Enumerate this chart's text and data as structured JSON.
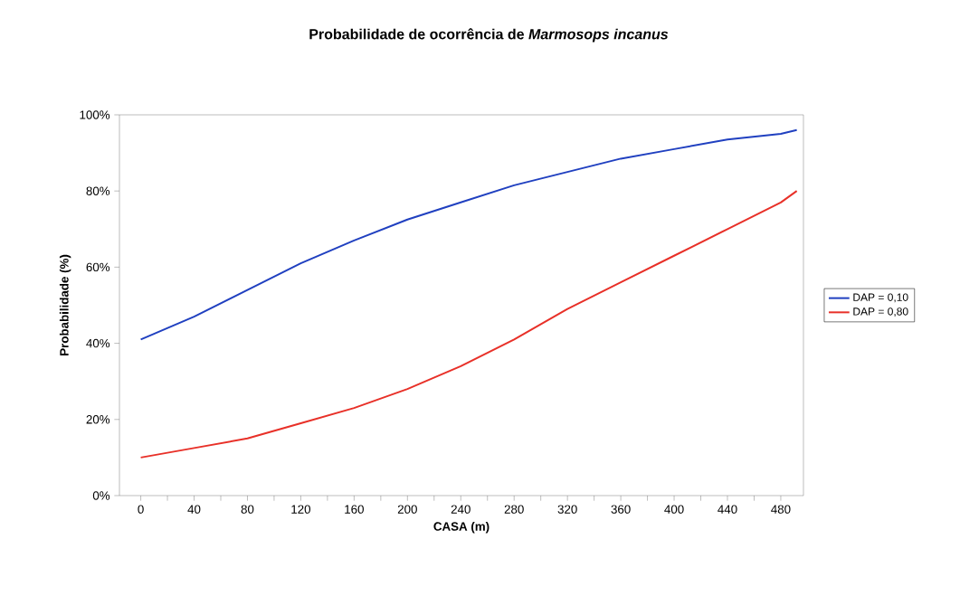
{
  "chart_data": {
    "type": "line",
    "title": "Probabilidade de ocorrência de *Marmosops incanus*",
    "xlabel": "CASA (m)",
    "ylabel": "Probabilidade (%)",
    "x": [
      0,
      40,
      80,
      120,
      160,
      200,
      240,
      280,
      320,
      360,
      400,
      440,
      480,
      492
    ],
    "series": [
      {
        "name": "DAP = 0,10",
        "color": "#2040c0",
        "values": [
          41,
          47,
          54,
          61,
          67,
          72.5,
          77,
          81.5,
          85,
          88.5,
          91,
          93.5,
          95,
          96
        ]
      },
      {
        "name": "DAP = 0,80",
        "color": "#e83028",
        "values": [
          10,
          12.5,
          15,
          19,
          23,
          28,
          34,
          41,
          49,
          56,
          63,
          70,
          77,
          80
        ]
      }
    ],
    "xlim": [
      -16,
      497
    ],
    "xticks": [
      0,
      {
        "value": 20,
        "label": null
      },
      40,
      {
        "value": 60,
        "label": null
      },
      80,
      {
        "value": 100,
        "label": null
      },
      120,
      {
        "value": 140,
        "label": null
      },
      160,
      {
        "value": 180,
        "label": null
      },
      200,
      {
        "value": 220,
        "label": null
      },
      240,
      {
        "value": 260,
        "label": null
      },
      280,
      {
        "value": 300,
        "label": null
      },
      320,
      {
        "value": 340,
        "label": null
      },
      360,
      {
        "value": 380,
        "label": null
      },
      400,
      {
        "value": 420,
        "label": null
      },
      440,
      {
        "value": 460,
        "label": null
      },
      480
    ],
    "ylim": [
      0,
      100
    ],
    "yticks": [
      {
        "value": 0,
        "label": "0%"
      },
      {
        "value": 20,
        "label": "20%"
      },
      {
        "value": 40,
        "label": "40%"
      },
      {
        "value": 60,
        "label": "60%"
      },
      {
        "value": 80,
        "label": "80%"
      },
      {
        "value": 100,
        "label": "100%"
      }
    ],
    "grid": false,
    "legend": "right",
    "marker": "none",
    "line_style": "solid"
  }
}
